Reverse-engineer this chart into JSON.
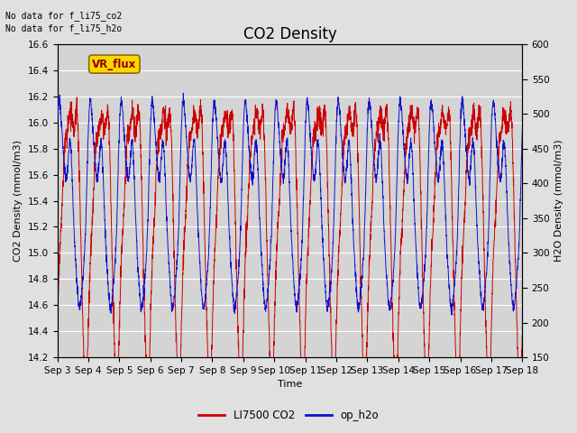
{
  "title": "CO2 Density",
  "xlabel": "Time",
  "ylabel_left": "CO2 Density (mmol/m3)",
  "ylabel_right": "H2O Density (mmol/m3)",
  "text_no_data_1": "No data for f_li75_co2",
  "text_no_data_2": "No data for f_li75_h2o",
  "vr_flux_label": "VR_flux",
  "legend_entries": [
    "LI7500 CO2",
    "op_h2o"
  ],
  "legend_colors": [
    "#cc0000",
    "#1010cc"
  ],
  "ylim_left": [
    14.2,
    16.6
  ],
  "ylim_right": [
    150,
    600
  ],
  "yticks_left": [
    14.2,
    14.4,
    14.6,
    14.8,
    15.0,
    15.2,
    15.4,
    15.6,
    15.8,
    16.0,
    16.2,
    16.4,
    16.6
  ],
  "yticks_right": [
    150,
    200,
    250,
    300,
    350,
    400,
    450,
    500,
    550,
    600
  ],
  "background_color": "#e0e0e0",
  "plot_bg_color": "#d4d4d4",
  "grid_color": "#ffffff",
  "title_fontsize": 12,
  "axis_label_fontsize": 8,
  "tick_fontsize": 7.5
}
